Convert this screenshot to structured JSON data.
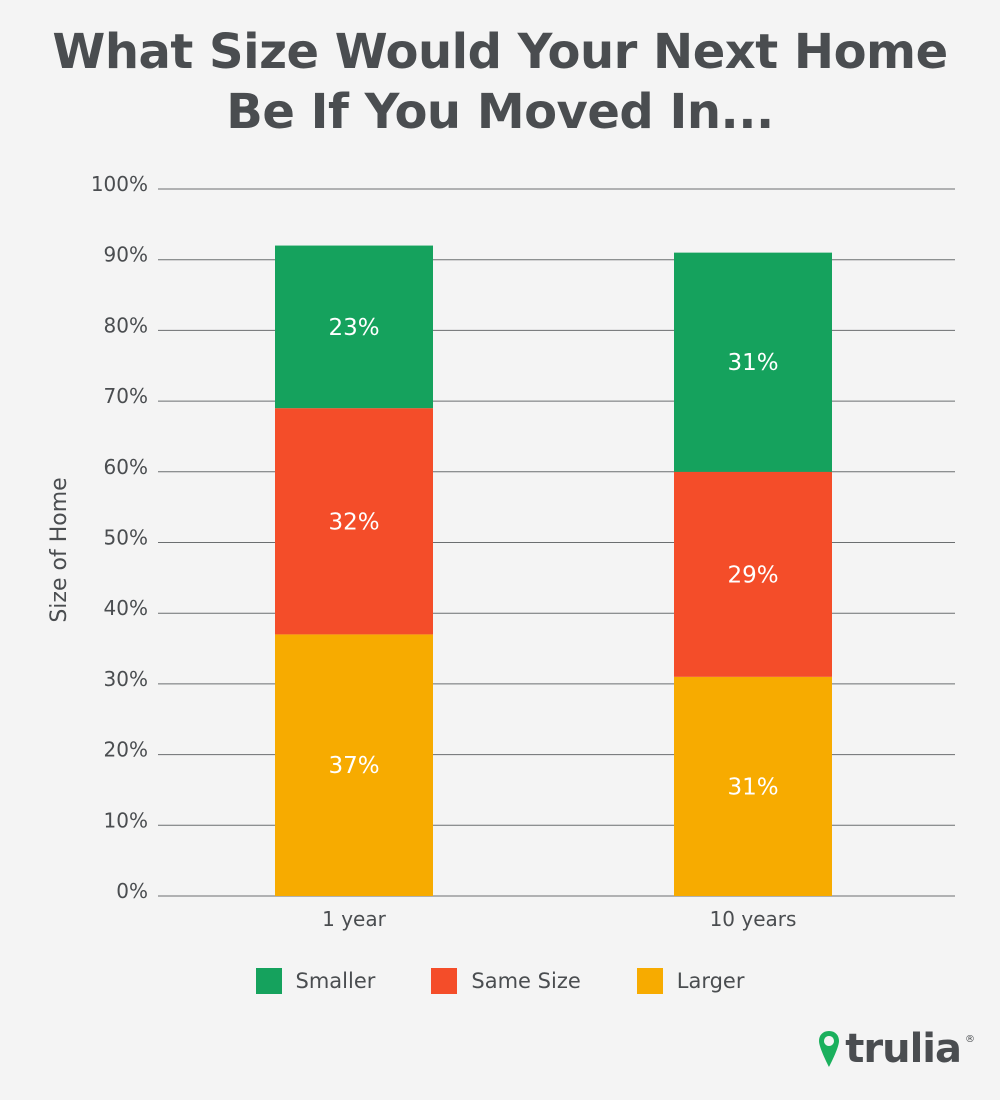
{
  "colors": {
    "smaller": "#15a25d",
    "same_size": "#f44d29",
    "larger": "#f7ab00",
    "grid": "#6b6e70",
    "brand_pin": "#1bb05d"
  },
  "chart_data": {
    "type": "bar",
    "stacked": true,
    "title_lines": [
      "What Size Would Your Next Home",
      "Be If You Moved In..."
    ],
    "ylabel": "Size of Home",
    "xlabel": "",
    "ylim": [
      0,
      100
    ],
    "yticks": [
      "0%",
      "10%",
      "20%",
      "30%",
      "40%",
      "50%",
      "60%",
      "70%",
      "80%",
      "90%",
      "100%"
    ],
    "categories": [
      "1 year",
      "10 years"
    ],
    "series": [
      {
        "name": "Larger",
        "values": [
          37,
          31
        ],
        "labels": [
          "37%",
          "31%"
        ]
      },
      {
        "name": "Same Size",
        "values": [
          32,
          29
        ],
        "labels": [
          "32%",
          "29%"
        ]
      },
      {
        "name": "Smaller",
        "values": [
          23,
          31
        ],
        "labels": [
          "23%",
          "31%"
        ]
      }
    ],
    "grid": true,
    "legend_position": "bottom"
  },
  "legend": [
    {
      "label": "Smaller",
      "color_key": "smaller"
    },
    {
      "label": "Same Size",
      "color_key": "same_size"
    },
    {
      "label": "Larger",
      "color_key": "larger"
    }
  ],
  "brand": {
    "name": "trulia",
    "mark": "®",
    "icon": "map-pin-icon"
  }
}
